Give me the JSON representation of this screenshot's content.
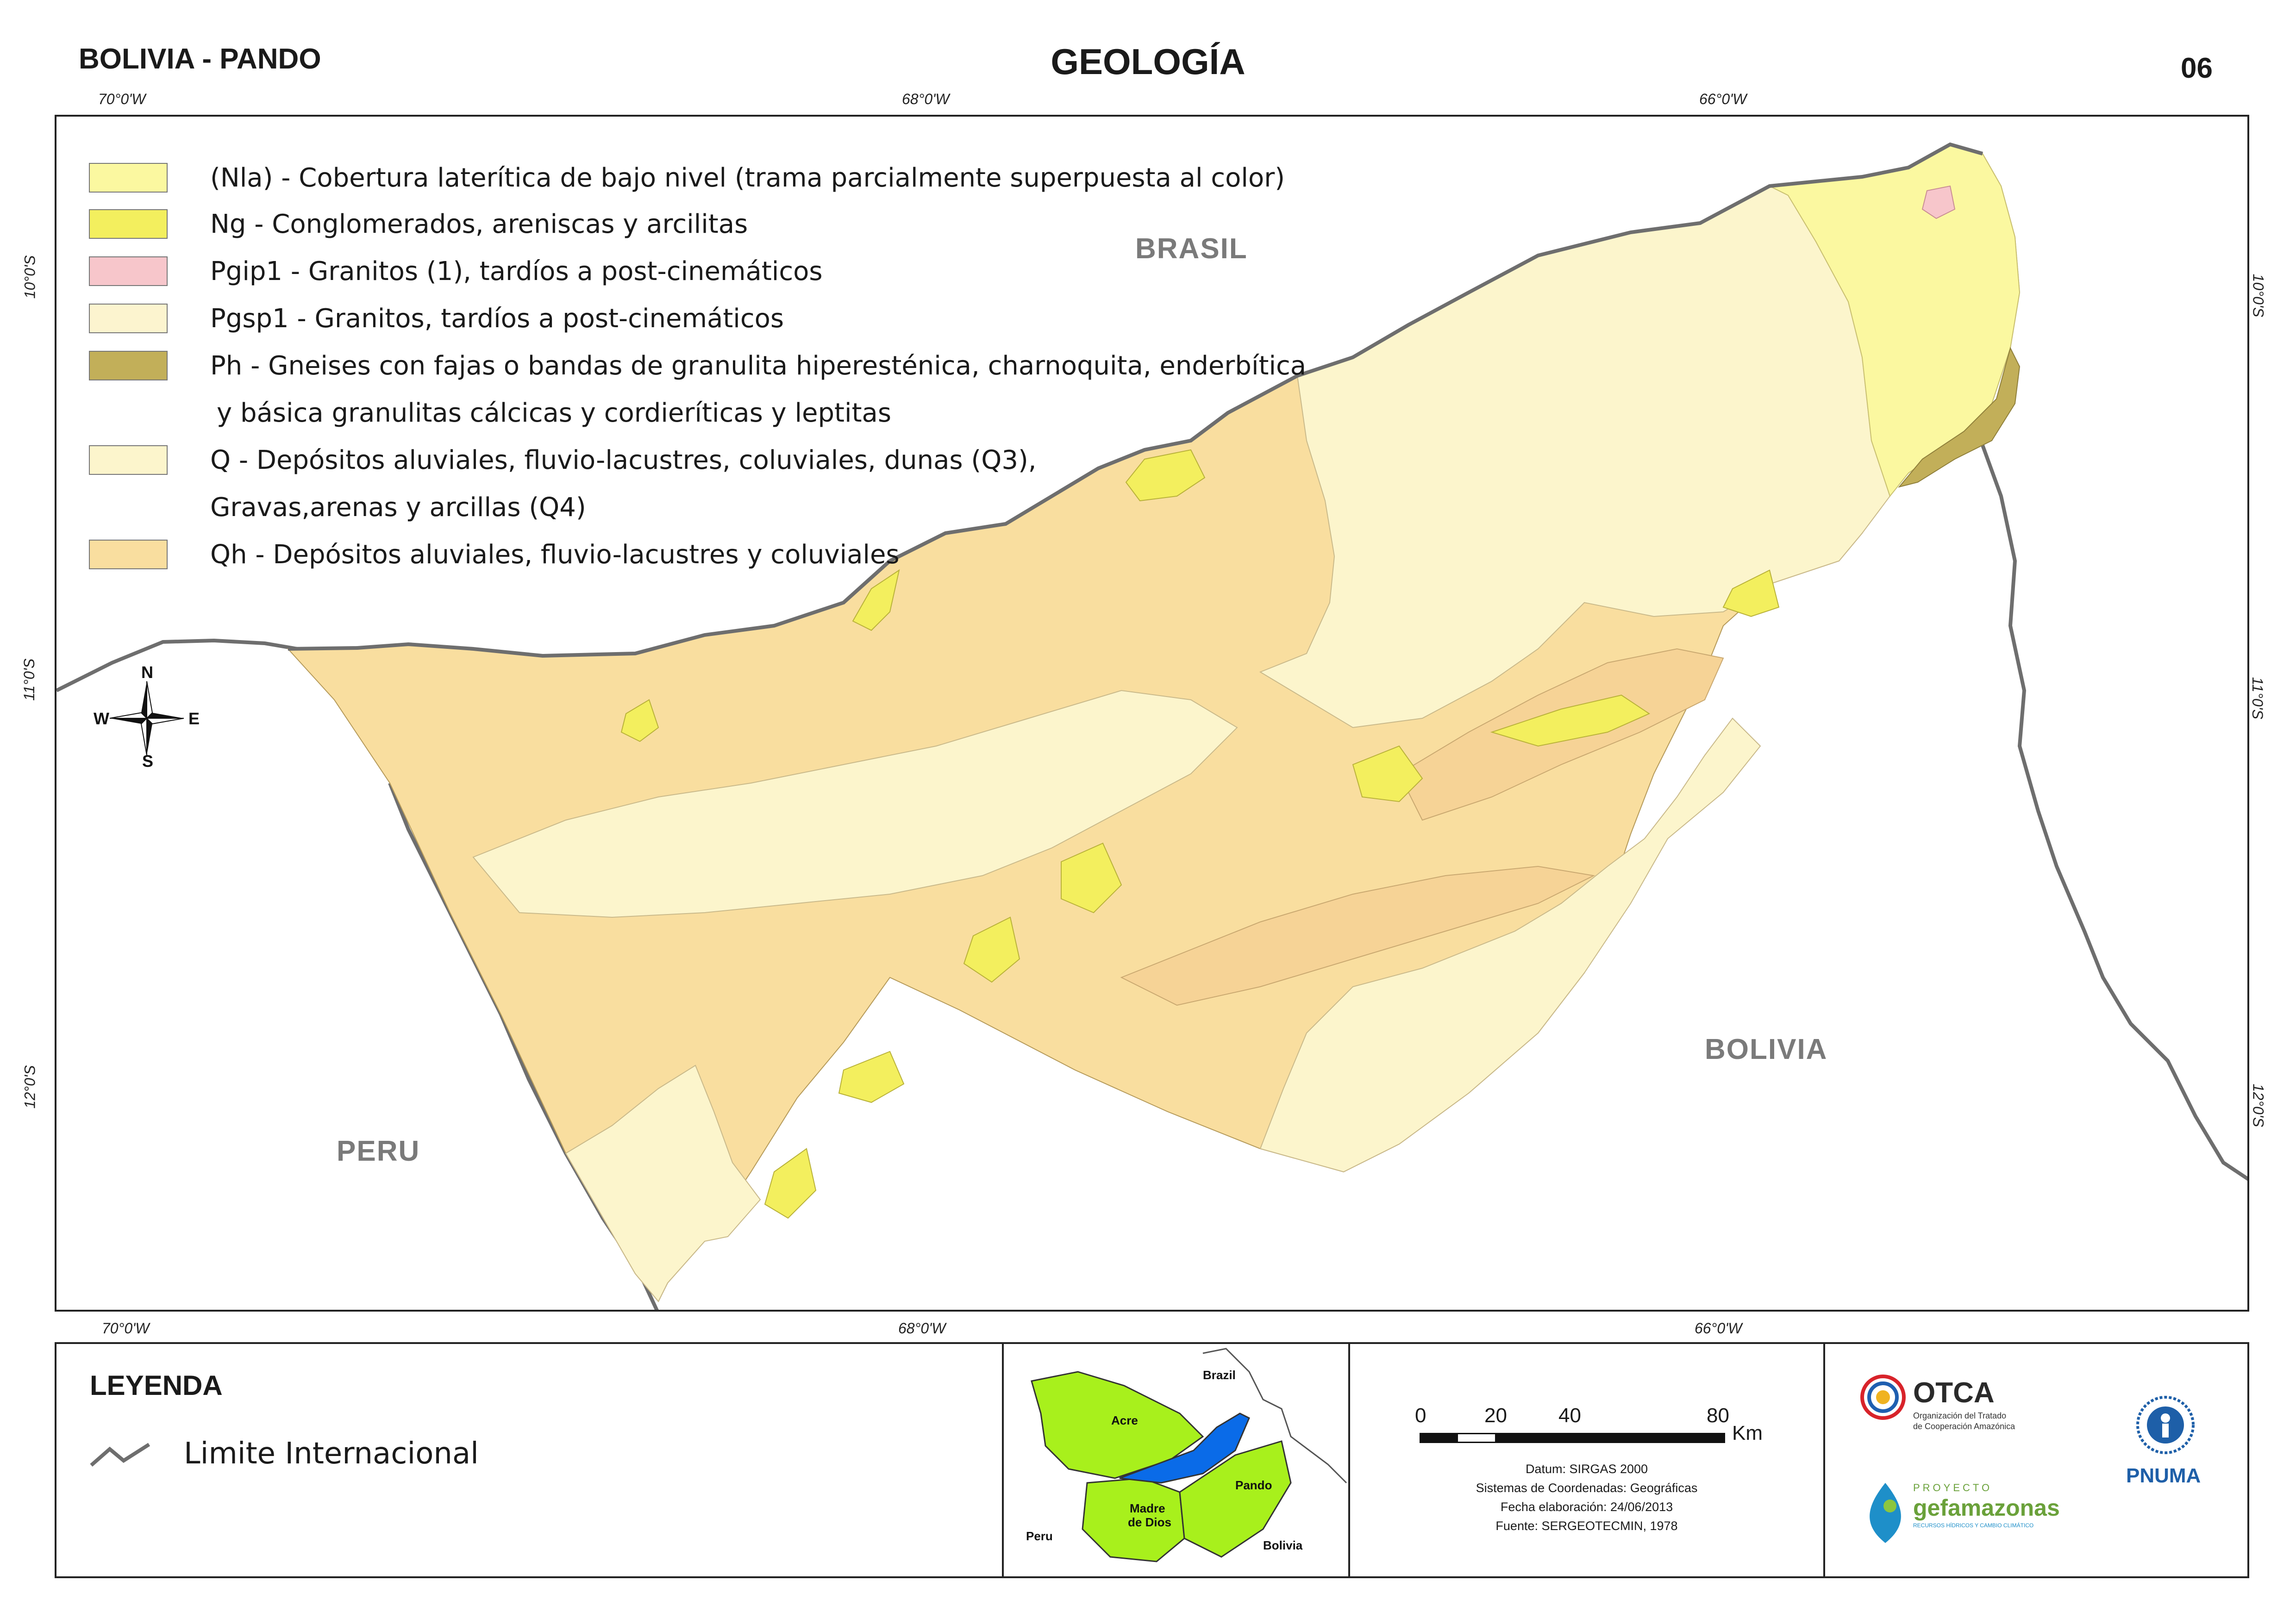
{
  "header": {
    "region": "BOLIVIA - PANDO",
    "title": "GEOLOGÍA",
    "sheet_number": "06"
  },
  "coordinates": {
    "top": [
      "70°0'W",
      "68°0'W",
      "66°0'W"
    ],
    "bottom": [
      "70°0'W",
      "68°0'W",
      "66°0'W"
    ],
    "left": [
      "10°0'S",
      "11°0'S",
      "12°0'S"
    ],
    "right": [
      "10°0'S",
      "11°0'S",
      "12°0'S"
    ]
  },
  "map_legend": [
    {
      "text": "(Nla) - Cobertura laterítica de bajo nivel (trama parcialmente superpuesta al color)",
      "color": "#FBF8A0"
    },
    {
      "text": "Ng - Conglomerados, areniscas y arcilitas",
      "color": "#F3EF5E"
    },
    {
      "text": "Pgip1 - Granitos (1), tardíos a post-cinemáticos",
      "color": "#F7C6CB"
    },
    {
      "text": "Pgsp1 - Granitos, tardíos a post-cinemáticos",
      "color": "#FCF4CF"
    },
    {
      "text": "Ph - Gneises con fajas o bandas de granulita hiperesténica, charnoquita, enderbítica",
      "color": "#C2AF59"
    },
    {
      "text": "y básica granulitas cálcicas y cordieríticas y leptitas",
      "color": null
    },
    {
      "text": "Q - Depósitos aluviales, fluvio-lacustres, coluviales, dunas (Q3),",
      "color": "#FCF5CC"
    },
    {
      "text": "Gravas,arenas y arcillas (Q4)",
      "color": null
    },
    {
      "text": "Qh - Depósitos aluviales, fluvio-lacustres y coluviales",
      "color": "#F9DE9F"
    }
  ],
  "countries": {
    "brasil": "BRASIL",
    "peru": "PERU",
    "bolivia": "BOLIVIA"
  },
  "compass": {
    "n": "N",
    "s": "S",
    "e": "E",
    "w": "W"
  },
  "legend_box": {
    "title": "LEYENDA",
    "item": "Limite Internacional"
  },
  "inset": {
    "labels": {
      "brazil": "Brazil",
      "acre": "Acre",
      "pando": "Pando",
      "madre": "Madre",
      "de_dios": "de Dios",
      "peru": "Peru",
      "bolivia": "Bolivia"
    },
    "colors": {
      "department": "#A8F01C",
      "pando": "#0A6BE8"
    }
  },
  "scale": {
    "ticks": [
      "0",
      "20",
      "40",
      "80"
    ],
    "unit": "Km"
  },
  "metadata": {
    "datum": "Datum: SIRGAS 2000",
    "coords": "Sistemas de Coordenadas: Geográficas",
    "date": "Fecha elaboración: 24/06/2013",
    "source": "Fuente: SERGEOTECMIN, 1978"
  },
  "logos": {
    "otca_name": "OTCA",
    "otca_line1": "Organización del Tratado",
    "otca_line2": "de Cooperación Amazónica",
    "proyecto": "PROYECTO",
    "gef": "gefamazonas",
    "gef_sub": "RECURSOS HÍDRICOS Y CAMBIO CLIMÁTICO",
    "pnuma": "PNUMA"
  },
  "colors": {
    "border_line": "#6e6e6e",
    "Qh": "#F9DE9F",
    "Qh_dark": "#F6D396",
    "Q": "#FCF5CC",
    "Ng": "#F3EF5E",
    "Nla": "#FBF8A0",
    "Ph": "#C2AF59",
    "Pgip1": "#F7C6CB"
  }
}
